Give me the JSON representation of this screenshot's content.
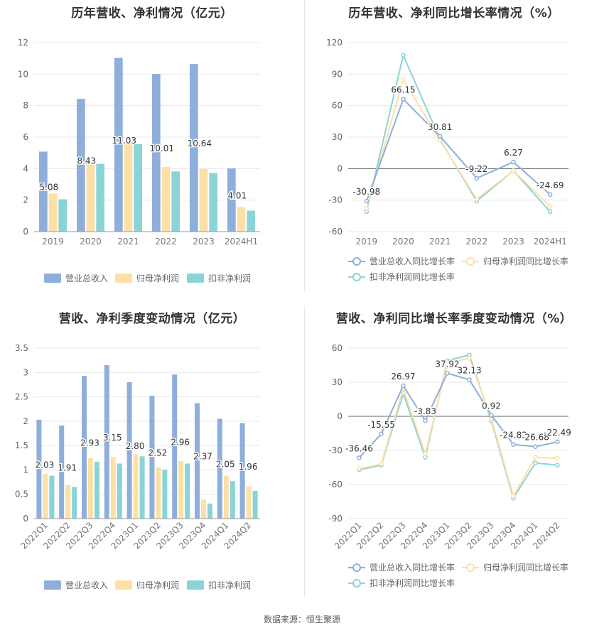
{
  "chart_data": [
    {
      "id": "c1",
      "type": "bar",
      "title": "历年营收、净利情况（亿元）",
      "categories": [
        "2019",
        "2020",
        "2021",
        "2022",
        "2023",
        "2024H1"
      ],
      "ylim": [
        0,
        12
      ],
      "yticks": [
        0,
        2,
        4,
        6,
        8,
        10,
        12
      ],
      "series": [
        {
          "name": "营业总收入",
          "color": "#8eaedc",
          "values": [
            5.08,
            8.43,
            11.03,
            10.01,
            10.64,
            4.01
          ],
          "labels": [
            "5.08",
            "8.43",
            "11.03",
            "10.01",
            "10.64",
            "4.01"
          ]
        },
        {
          "name": "归母净利润",
          "color": "#fde0a6",
          "values": [
            2.42,
            4.5,
            5.72,
            4.1,
            3.98,
            1.56
          ]
        },
        {
          "name": "扣非净利润",
          "color": "#8ad4d8",
          "values": [
            2.05,
            4.3,
            5.55,
            3.82,
            3.72,
            1.33
          ]
        }
      ],
      "legend": "bottom"
    },
    {
      "id": "c2",
      "type": "line",
      "title": "历年营收、净利同比增长率情况（%）",
      "categories": [
        "2019",
        "2020",
        "2021",
        "2022",
        "2023",
        "2024H1"
      ],
      "ylim": [
        -60,
        120
      ],
      "yticks": [
        -60,
        -30,
        0,
        30,
        60,
        90,
        120
      ],
      "series": [
        {
          "name": "营业总收入同比增长率",
          "color": "#8eaedc",
          "values": [
            -30.98,
            66.15,
            30.81,
            -9.22,
            6.27,
            -24.69
          ],
          "labels": [
            "-30.98",
            "66.15",
            "30.81",
            "-9.22",
            "6.27",
            "-24.69"
          ]
        },
        {
          "name": "归母净利润同比增长率",
          "color": "#fde0a6",
          "values": [
            -38,
            85,
            27,
            -29,
            -2,
            -36
          ]
        },
        {
          "name": "扣非净利润同比增长率",
          "color": "#8ad4d8",
          "values": [
            -41,
            108,
            28,
            -31,
            -2,
            -41
          ]
        }
      ],
      "legend": "bottom"
    },
    {
      "id": "c3",
      "type": "bar",
      "title": "营收、净利季度变动情况（亿元）",
      "categories": [
        "2022Q1",
        "2022Q2",
        "2022Q3",
        "2022Q4",
        "2023Q1",
        "2023Q2",
        "2023Q3",
        "2023Q4",
        "2024Q1",
        "2024Q2"
      ],
      "ylim": [
        0,
        3.5
      ],
      "yticks": [
        0,
        0.5,
        1,
        1.5,
        2,
        2.5,
        3,
        3.5
      ],
      "series": [
        {
          "name": "营业总收入",
          "color": "#8eaedc",
          "values": [
            2.03,
            1.91,
            2.93,
            3.15,
            2.8,
            2.52,
            2.96,
            2.37,
            2.05,
            1.96
          ],
          "labels": [
            "2.03",
            "1.91",
            "2.93",
            "3.15",
            "2.80",
            "2.52",
            "2.96",
            "2.37",
            "2.05",
            "1.96"
          ]
        },
        {
          "name": "归母净利润",
          "color": "#fde0a6",
          "values": [
            0.92,
            0.69,
            1.24,
            1.26,
            1.32,
            1.05,
            1.18,
            0.39,
            0.88,
            0.66
          ]
        },
        {
          "name": "扣非净利润",
          "color": "#8ad4d8",
          "values": [
            0.88,
            0.65,
            1.17,
            1.13,
            1.28,
            1.0,
            1.13,
            0.31,
            0.77,
            0.57
          ]
        }
      ],
      "legend": "bottom"
    },
    {
      "id": "c4",
      "type": "line",
      "title": "营收、净利同比增长率季度变动情况（%）",
      "categories": [
        "2022Q1",
        "2022Q2",
        "2022Q3",
        "2022Q4",
        "2023Q1",
        "2023Q2",
        "2023Q3",
        "2023Q4",
        "2024Q1",
        "2024Q2"
      ],
      "ylim": [
        -90,
        60
      ],
      "yticks": [
        -90,
        -60,
        -30,
        0,
        30,
        60
      ],
      "series": [
        {
          "name": "营业总收入同比增长率",
          "color": "#8eaedc",
          "values": [
            -36.46,
            -15.55,
            26.97,
            -3.83,
            37.92,
            32.13,
            0.92,
            -24.82,
            -26.68,
            -22.49
          ],
          "labels": [
            "-36.46",
            "-15.55",
            "26.97",
            "-3.83",
            "37.92",
            "32.13",
            "0.92",
            "-24.82",
            "-26.68",
            "-22.49"
          ]
        },
        {
          "name": "归母净利润同比增长率",
          "color": "#fde0a6",
          "values": [
            -46,
            -42,
            24,
            -33,
            47,
            51,
            -2,
            -70,
            -36,
            -37
          ]
        },
        {
          "name": "扣非净利润同比增长率",
          "color": "#8ad4d8",
          "values": [
            -47,
            -43,
            20,
            -36,
            49,
            54,
            -4,
            -72,
            -41,
            -43
          ]
        }
      ],
      "legend": "bottom"
    }
  ],
  "source_text": "数据来源：恒生聚源"
}
